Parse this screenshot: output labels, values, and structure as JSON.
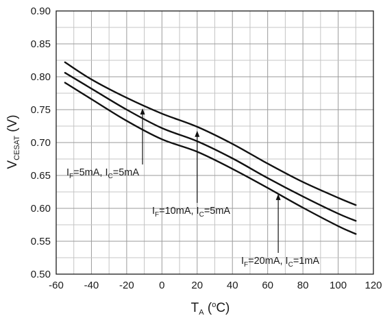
{
  "chart_data": {
    "type": "line",
    "xlabel": {
      "main": "T",
      "sub": "A",
      "unit_open": " (",
      "unit_sup": "o",
      "unit_close": "C)"
    },
    "ylabel": {
      "main": "V",
      "sub": "CESAT",
      "unit": " (V)"
    },
    "xlim": [
      -60,
      120
    ],
    "ylim": [
      0.5,
      0.9
    ],
    "xticks": [
      "-60",
      "-40",
      "-20",
      "0",
      "20",
      "40",
      "60",
      "80",
      "100",
      "120"
    ],
    "yticks": [
      "0.50",
      "0.55",
      "0.60",
      "0.65",
      "0.70",
      "0.75",
      "0.80",
      "0.85",
      "0.90"
    ],
    "grid": true,
    "series": [
      {
        "name": "IF=5mA, IC=5mA",
        "x": [
          -55,
          -40,
          -20,
          0,
          20,
          40,
          60,
          80,
          100,
          110
        ],
        "y": [
          0.822,
          0.796,
          0.768,
          0.744,
          0.724,
          0.698,
          0.668,
          0.64,
          0.616,
          0.605
        ]
      },
      {
        "name": "IF=10mA, IC=5mA",
        "x": [
          -55,
          -40,
          -20,
          0,
          20,
          40,
          60,
          80,
          100,
          110
        ],
        "y": [
          0.806,
          0.782,
          0.75,
          0.722,
          0.702,
          0.676,
          0.646,
          0.618,
          0.592,
          0.581
        ]
      },
      {
        "name": "IF=20mA, IC=1mA",
        "x": [
          -55,
          -40,
          -20,
          0,
          20,
          40,
          60,
          80,
          100,
          110
        ],
        "y": [
          0.791,
          0.766,
          0.733,
          0.705,
          0.686,
          0.66,
          0.631,
          0.601,
          0.573,
          0.561
        ]
      }
    ],
    "annotations": [
      {
        "prefix": "I",
        "sub1": "F",
        "mid": "=5mA, I",
        "sub2": "C",
        "suffix": "=5mA",
        "arrow_to": [
          -11,
          0.752
        ]
      },
      {
        "prefix": "I",
        "sub1": "F",
        "mid": "=10mA, I",
        "sub2": "C",
        "suffix": "=5mA",
        "arrow_to": [
          20,
          0.718
        ]
      },
      {
        "prefix": "I",
        "sub1": "F",
        "mid": "=20mA, I",
        "sub2": "C",
        "suffix": "=1mA",
        "arrow_to": [
          66,
          0.622
        ]
      }
    ]
  }
}
